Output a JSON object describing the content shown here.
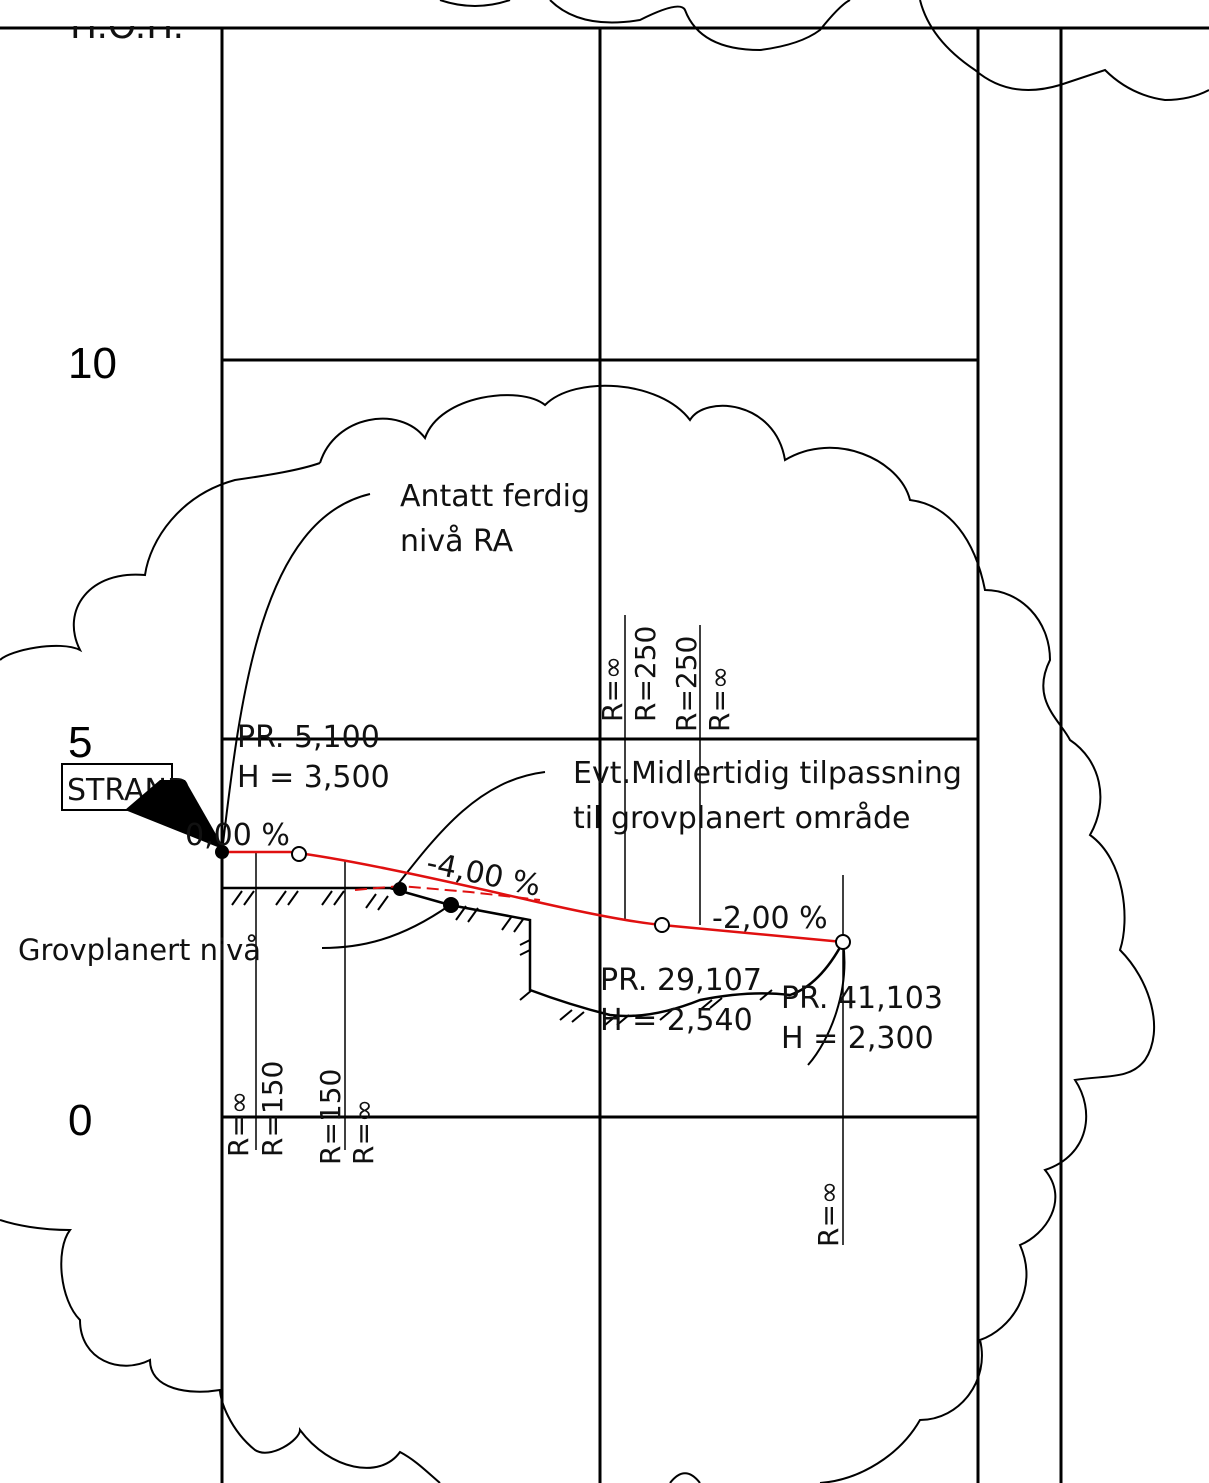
{
  "header": {
    "partial_text": "H.O.H."
  },
  "axis": {
    "ticks": [
      "10",
      "5",
      "0"
    ]
  },
  "station_box": {
    "label": "STRAND"
  },
  "notes": {
    "finished_level": {
      "line1": "Antatt ferdig",
      "line2": "nivå RA"
    },
    "temporary_fit": {
      "line1": "Evt.Midlertidig tilpassning",
      "line2": "til grovplanert område"
    },
    "rough_level": "Grovplanert nivå"
  },
  "profile_points": [
    {
      "pr": "PR. 5,100",
      "h": "H = 3,500"
    },
    {
      "pr": "PR. 29,107",
      "h": "H = 2,540"
    },
    {
      "pr": "PR. 41,103",
      "h": "H = 2,300"
    }
  ],
  "grades": [
    "0,00 %",
    "-4,00 %",
    "-2,00 %"
  ],
  "curve_radii": {
    "top": [
      "R=∞",
      "R=250",
      "R=250",
      "R=∞"
    ],
    "bottom": [
      "R=∞",
      "R=150",
      "R=150",
      "R=∞"
    ],
    "end": "R=∞"
  },
  "colors": {
    "design_line": "#e01010",
    "linework": "#000000",
    "background": "#ffffff"
  }
}
